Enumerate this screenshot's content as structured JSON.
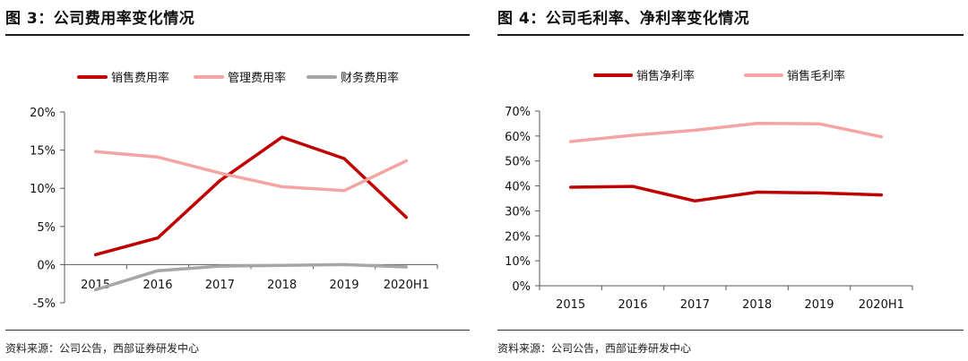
{
  "figures": [
    {
      "title": "图 3：公司费用率变化情况",
      "source": "资料来源：公司公告，西部证券研发中心"
    },
    {
      "title": "图 4：公司毛利率、净利率变化情况",
      "source": "资料来源：公司公告，西部证券研发中心"
    }
  ],
  "chart_data": [
    {
      "type": "line",
      "title": "",
      "xlabel": "",
      "ylabel": "",
      "categories": [
        "2015",
        "2016",
        "2017",
        "2018",
        "2019",
        "2020H1"
      ],
      "y_ticks": [
        "-5%",
        "0%",
        "5%",
        "10%",
        "15%",
        "20%"
      ],
      "ylim": [
        -5,
        20
      ],
      "grid": false,
      "legend_position": "top",
      "series": [
        {
          "name": "销售费用率",
          "color": "#c00000",
          "values": [
            1.3,
            3.5,
            11.0,
            16.7,
            13.9,
            6.2
          ]
        },
        {
          "name": "管理费用率",
          "color": "#f4a5a3",
          "values": [
            14.8,
            14.1,
            12.0,
            10.2,
            9.7,
            13.6
          ]
        },
        {
          "name": "财务费用率",
          "color": "#a6a6a6",
          "values": [
            -3.3,
            -0.8,
            -0.2,
            -0.1,
            0.0,
            -0.3
          ]
        }
      ]
    },
    {
      "type": "line",
      "title": "",
      "xlabel": "",
      "ylabel": "",
      "categories": [
        "2015",
        "2016",
        "2017",
        "2018",
        "2019",
        "2020H1"
      ],
      "y_ticks": [
        "0%",
        "10%",
        "20%",
        "30%",
        "40%",
        "50%",
        "60%",
        "70%"
      ],
      "ylim": [
        0,
        70
      ],
      "grid": false,
      "legend_position": "top",
      "series": [
        {
          "name": "销售净利率",
          "color": "#c00000",
          "values": [
            39.5,
            39.8,
            34.0,
            37.5,
            37.2,
            36.4
          ]
        },
        {
          "name": "销售毛利率",
          "color": "#f4a5a3",
          "values": [
            57.8,
            60.3,
            62.3,
            65.1,
            64.9,
            59.7
          ]
        }
      ]
    }
  ]
}
